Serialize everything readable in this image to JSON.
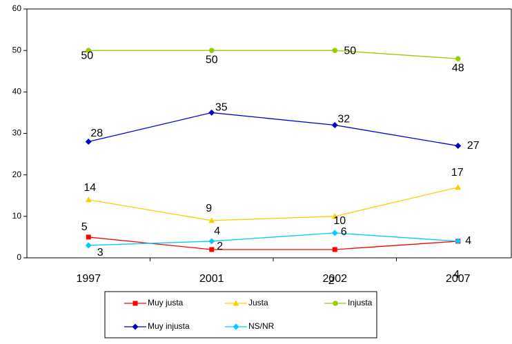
{
  "chart_data": {
    "type": "line",
    "categories": [
      "1997",
      "2001",
      "2002",
      "2007"
    ],
    "series": [
      {
        "name": "Muy justa",
        "color": "#ff0000",
        "marker": "square",
        "values": [
          5,
          2,
          2,
          4
        ]
      },
      {
        "name": "Justa",
        "color": "#ffcc00",
        "marker": "triangle",
        "values": [
          14,
          9,
          10,
          17
        ]
      },
      {
        "name": "Injusta",
        "color": "#99cc00",
        "marker": "circle",
        "values": [
          50,
          50,
          50,
          48
        ]
      },
      {
        "name": "Muy injusta",
        "color": "#0000cc",
        "marker": "diamond",
        "values": [
          28,
          35,
          32,
          27
        ]
      },
      {
        "name": "NS/NR",
        "color": "#00ccff",
        "marker": "diamond",
        "values": [
          3,
          4,
          6,
          4
        ]
      }
    ],
    "ylim": [
      0,
      60
    ],
    "yticks": [
      0,
      10,
      20,
      30,
      40,
      50,
      60
    ]
  }
}
